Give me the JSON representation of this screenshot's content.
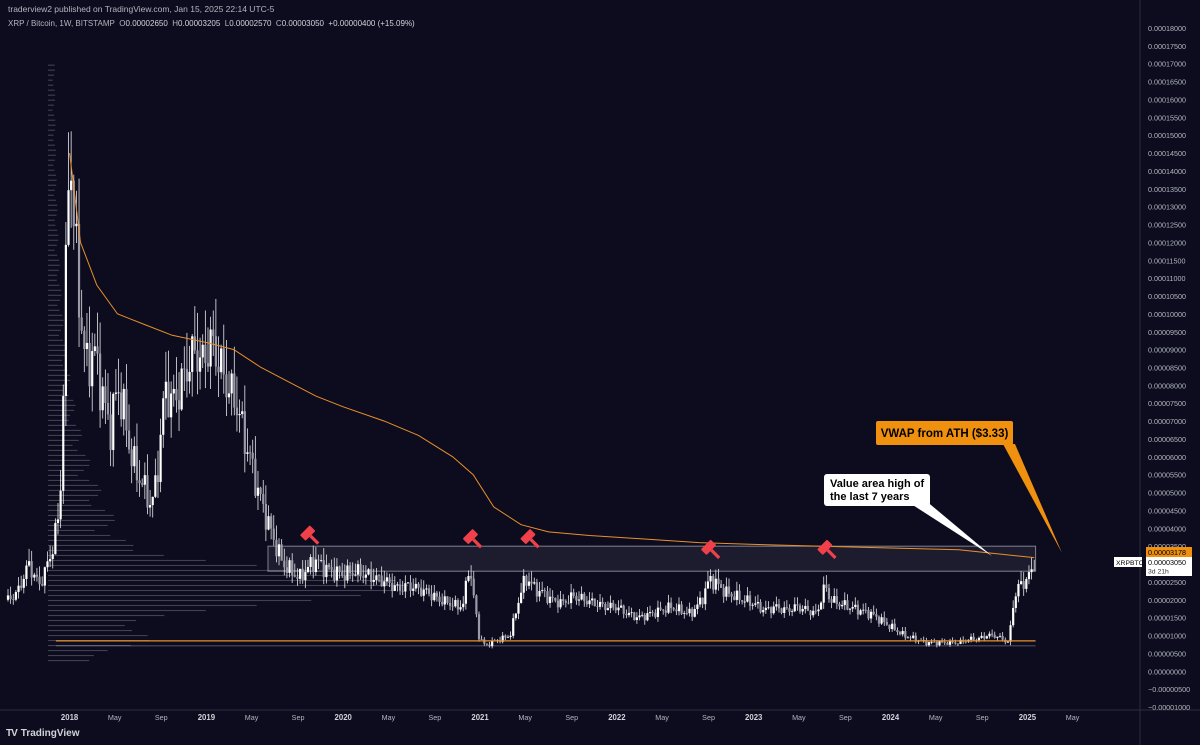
{
  "header": {
    "published": "traderview2 published on TradingView.com, Jan 15, 2025 22:14 UTC-5"
  },
  "ohlc": {
    "symbol_desc": "XRP / Bitcoin, 1W, BITSTAMP",
    "o_label": "O",
    "o": "0.00002650",
    "h_label": "H",
    "h": "0.00003205",
    "l_label": "L",
    "l": "0.00002570",
    "c_label": "C",
    "c": "0.00003050",
    "change": "+0.00000400 (+15.09%)"
  },
  "footer": {
    "logo_glyph": "TV",
    "brand": "TradingView"
  },
  "colors": {
    "background": "#0c0c1e",
    "candle": "#e6e6ec",
    "vwap": "#e8902a",
    "callout_orange": "#f0900f",
    "hammer": "#f0404a",
    "axis_text": "#b2b5be"
  },
  "chart_data": {
    "type": "candlestick",
    "symbol": "XRPBTC",
    "interval": "1W",
    "exchange": "BITSTAMP",
    "ylim": [
      -1e-05,
      0.00018
    ],
    "y_ticks": [
      "0.00018000",
      "0.00017500",
      "0.00017000",
      "0.00016500",
      "0.00016000",
      "0.00015500",
      "0.00015000",
      "0.00014500",
      "0.00014000",
      "0.00013500",
      "0.00013000",
      "0.00012500",
      "0.00012000",
      "0.00011500",
      "0.00011000",
      "0.00010500",
      "0.00010000",
      "0.00009500",
      "0.00009000",
      "0.00008500",
      "0.00008000",
      "0.00007500",
      "0.00007000",
      "0.00006500",
      "0.00006000",
      "0.00005500",
      "0.00005000",
      "0.00004500",
      "0.00004000",
      "0.00003500",
      "0.00003000",
      "0.00002500",
      "0.00002000",
      "0.00001500",
      "0.00001000",
      "0.00000500",
      "0.00000000",
      "−0.00000500",
      "−0.00001000"
    ],
    "x_ticks": [
      {
        "label": "2018",
        "t": 2018.0,
        "bold": true
      },
      {
        "label": "May",
        "t": 2018.33
      },
      {
        "label": "Sep",
        "t": 2018.67
      },
      {
        "label": "2019",
        "t": 2019.0,
        "bold": true
      },
      {
        "label": "May",
        "t": 2019.33
      },
      {
        "label": "Sep",
        "t": 2019.67
      },
      {
        "label": "2020",
        "t": 2020.0,
        "bold": true
      },
      {
        "label": "May",
        "t": 2020.33
      },
      {
        "label": "Sep",
        "t": 2020.67
      },
      {
        "label": "2021",
        "t": 2021.0,
        "bold": true
      },
      {
        "label": "May",
        "t": 2021.33
      },
      {
        "label": "Sep",
        "t": 2021.67
      },
      {
        "label": "2022",
        "t": 2022.0,
        "bold": true
      },
      {
        "label": "May",
        "t": 2022.33
      },
      {
        "label": "Sep",
        "t": 2022.67
      },
      {
        "label": "2023",
        "t": 2023.0,
        "bold": true
      },
      {
        "label": "May",
        "t": 2023.33
      },
      {
        "label": "Sep",
        "t": 2023.67
      },
      {
        "label": "2024",
        "t": 2024.0,
        "bold": true
      },
      {
        "label": "May",
        "t": 2024.33
      },
      {
        "label": "Sep",
        "t": 2024.67
      },
      {
        "label": "2025",
        "t": 2025.0,
        "bold": true
      },
      {
        "label": "May",
        "t": 2025.33
      }
    ],
    "price_path": [
      [
        2017.55,
        2e-05
      ],
      [
        2017.62,
        2.2e-05
      ],
      [
        2017.7,
        3e-05
      ],
      [
        2017.78,
        2.4e-05
      ],
      [
        2017.86,
        3.2e-05
      ],
      [
        2017.93,
        4.5e-05
      ],
      [
        2017.96,
        9e-05
      ],
      [
        2018.0,
        0.00015
      ],
      [
        2018.04,
        0.00012
      ],
      [
        2018.08,
        0.0001
      ],
      [
        2018.12,
        8.5e-05
      ],
      [
        2018.18,
        9e-05
      ],
      [
        2018.25,
        7.5e-05
      ],
      [
        2018.3,
        6.8e-05
      ],
      [
        2018.35,
        8e-05
      ],
      [
        2018.4,
        7.2e-05
      ],
      [
        2018.45,
        6e-05
      ],
      [
        2018.5,
        5.5e-05
      ],
      [
        2018.56,
        5e-05
      ],
      [
        2018.6,
        4.6e-05
      ],
      [
        2018.64,
        5.5e-05
      ],
      [
        2018.7,
        8e-05
      ],
      [
        2018.74,
        7.5e-05
      ],
      [
        2018.8,
        7.8e-05
      ],
      [
        2018.86,
        8.5e-05
      ],
      [
        2018.92,
        9e-05
      ],
      [
        2018.97,
        8.6e-05
      ],
      [
        2019.03,
        9.2e-05
      ],
      [
        2019.08,
        8.8e-05
      ],
      [
        2019.15,
        8e-05
      ],
      [
        2019.22,
        7.5e-05
      ],
      [
        2019.28,
        6.5e-05
      ],
      [
        2019.33,
        5.8e-05
      ],
      [
        2019.38,
        5e-05
      ],
      [
        2019.43,
        4.4e-05
      ],
      [
        2019.5,
        3.6e-05
      ],
      [
        2019.56,
        3e-05
      ],
      [
        2019.62,
        2.8e-05
      ],
      [
        2019.68,
        2.6e-05
      ],
      [
        2019.74,
        2.9e-05
      ],
      [
        2019.8,
        3.1e-05
      ],
      [
        2019.86,
        2.9e-05
      ],
      [
        2019.92,
        2.8e-05
      ],
      [
        2020.0,
        2.7e-05
      ],
      [
        2020.08,
        2.8e-05
      ],
      [
        2020.16,
        2.7e-05
      ],
      [
        2020.24,
        2.6e-05
      ],
      [
        2020.32,
        2.5e-05
      ],
      [
        2020.4,
        2.3e-05
      ],
      [
        2020.48,
        2.4e-05
      ],
      [
        2020.55,
        2.3e-05
      ],
      [
        2020.62,
        2.2e-05
      ],
      [
        2020.7,
        2e-05
      ],
      [
        2020.78,
        1.9e-05
      ],
      [
        2020.84,
        1.8e-05
      ],
      [
        2020.88,
        1.9e-05
      ],
      [
        2020.92,
        3e-05
      ],
      [
        2020.95,
        2.2e-05
      ],
      [
        2020.99,
        1e-05
      ],
      [
        2021.04,
        7e-06
      ],
      [
        2021.08,
        8e-06
      ],
      [
        2021.15,
        9e-06
      ],
      [
        2021.22,
        1e-05
      ],
      [
        2021.27,
        1.8e-05
      ],
      [
        2021.31,
        2.4e-05
      ],
      [
        2021.35,
        2.6e-05
      ],
      [
        2021.4,
        2.3e-05
      ],
      [
        2021.46,
        2.2e-05
      ],
      [
        2021.52,
        2e-05
      ],
      [
        2021.6,
        1.9e-05
      ],
      [
        2021.68,
        2.1e-05
      ],
      [
        2021.76,
        2e-05
      ],
      [
        2021.84,
        1.9e-05
      ],
      [
        2021.92,
        1.8e-05
      ],
      [
        2022.0,
        1.8e-05
      ],
      [
        2022.08,
        1.6e-05
      ],
      [
        2022.16,
        1.5e-05
      ],
      [
        2022.24,
        1.6e-05
      ],
      [
        2022.32,
        1.7e-05
      ],
      [
        2022.4,
        1.8e-05
      ],
      [
        2022.46,
        1.7e-05
      ],
      [
        2022.54,
        1.6e-05
      ],
      [
        2022.62,
        2e-05
      ],
      [
        2022.68,
        2.6e-05
      ],
      [
        2022.74,
        2.4e-05
      ],
      [
        2022.8,
        2.2e-05
      ],
      [
        2022.86,
        2.1e-05
      ],
      [
        2022.92,
        2e-05
      ],
      [
        2023.0,
        1.9e-05
      ],
      [
        2023.08,
        1.7e-05
      ],
      [
        2023.16,
        1.8e-05
      ],
      [
        2023.24,
        1.7e-05
      ],
      [
        2023.32,
        1.8e-05
      ],
      [
        2023.4,
        1.7e-05
      ],
      [
        2023.46,
        1.6e-05
      ],
      [
        2023.52,
        2.4e-05
      ],
      [
        2023.56,
        2e-05
      ],
      [
        2023.62,
        1.9e-05
      ],
      [
        2023.7,
        1.8e-05
      ],
      [
        2023.78,
        1.7e-05
      ],
      [
        2023.86,
        1.6e-05
      ],
      [
        2023.94,
        1.4e-05
      ],
      [
        2024.02,
        1.2e-05
      ],
      [
        2024.1,
        1e-05
      ],
      [
        2024.18,
        9e-06
      ],
      [
        2024.26,
        8e-06
      ],
      [
        2024.34,
        8e-06
      ],
      [
        2024.42,
        8e-06
      ],
      [
        2024.5,
        8e-06
      ],
      [
        2024.58,
        9e-06
      ],
      [
        2024.64,
        9e-06
      ],
      [
        2024.7,
        1e-05
      ],
      [
        2024.76,
        1e-05
      ],
      [
        2024.82,
        9e-06
      ],
      [
        2024.86,
        8e-06
      ],
      [
        2024.88,
        1.3e-05
      ],
      [
        2024.9,
        2e-05
      ],
      [
        2024.94,
        2.4e-05
      ],
      [
        2024.98,
        2.5e-05
      ],
      [
        2025.02,
        2.7e-05
      ],
      [
        2025.05,
        3.05e-05
      ]
    ],
    "vwap_path": [
      [
        2018.0,
        0.000145
      ],
      [
        2018.08,
        0.00012
      ],
      [
        2018.2,
        0.000108
      ],
      [
        2018.35,
        0.0001
      ],
      [
        2018.55,
        9.7e-05
      ],
      [
        2018.75,
        9.4e-05
      ],
      [
        2019.0,
        9.2e-05
      ],
      [
        2019.2,
        9e-05
      ],
      [
        2019.4,
        8.5e-05
      ],
      [
        2019.6,
        8.1e-05
      ],
      [
        2019.8,
        7.7e-05
      ],
      [
        2020.0,
        7.4e-05
      ],
      [
        2020.3,
        7e-05
      ],
      [
        2020.55,
        6.6e-05
      ],
      [
        2020.8,
        6e-05
      ],
      [
        2020.95,
        5.5e-05
      ],
      [
        2021.1,
        4.6e-05
      ],
      [
        2021.3,
        4.1e-05
      ],
      [
        2021.5,
        3.9e-05
      ],
      [
        2021.8,
        3.8e-05
      ],
      [
        2022.2,
        3.7e-05
      ],
      [
        2022.6,
        3.6e-05
      ],
      [
        2023.0,
        3.55e-05
      ],
      [
        2023.5,
        3.5e-05
      ],
      [
        2024.0,
        3.45e-05
      ],
      [
        2024.5,
        3.4e-05
      ],
      [
        2025.05,
        3.18e-05
      ]
    ],
    "value_area": {
      "low": 2.8e-05,
      "high": 3.5e-05,
      "t_start": 2019.45,
      "t_end": 2025.06
    },
    "low_line": {
      "value": 8.5e-06,
      "t_start": 2017.9,
      "t_end": 2025.06
    },
    "hammers": [
      {
        "t": 2019.74,
        "v": 3.7e-05
      },
      {
        "t": 2020.93,
        "v": 3.6e-05
      },
      {
        "t": 2021.35,
        "v": 3.6e-05
      },
      {
        "t": 2022.67,
        "v": 3.3e-05
      },
      {
        "t": 2023.52,
        "v": 3.3e-05
      }
    ],
    "annotations": {
      "vwap_label": "VWAP from ATH ($3.33)",
      "value_area_line1": "Value area high of",
      "value_area_line2": "the last 7 years"
    },
    "price_tags": {
      "symbol": "XRPBTC",
      "vwap_value": "0.00003178",
      "last_value": "0.00003050",
      "countdown": "3d 21h"
    }
  }
}
